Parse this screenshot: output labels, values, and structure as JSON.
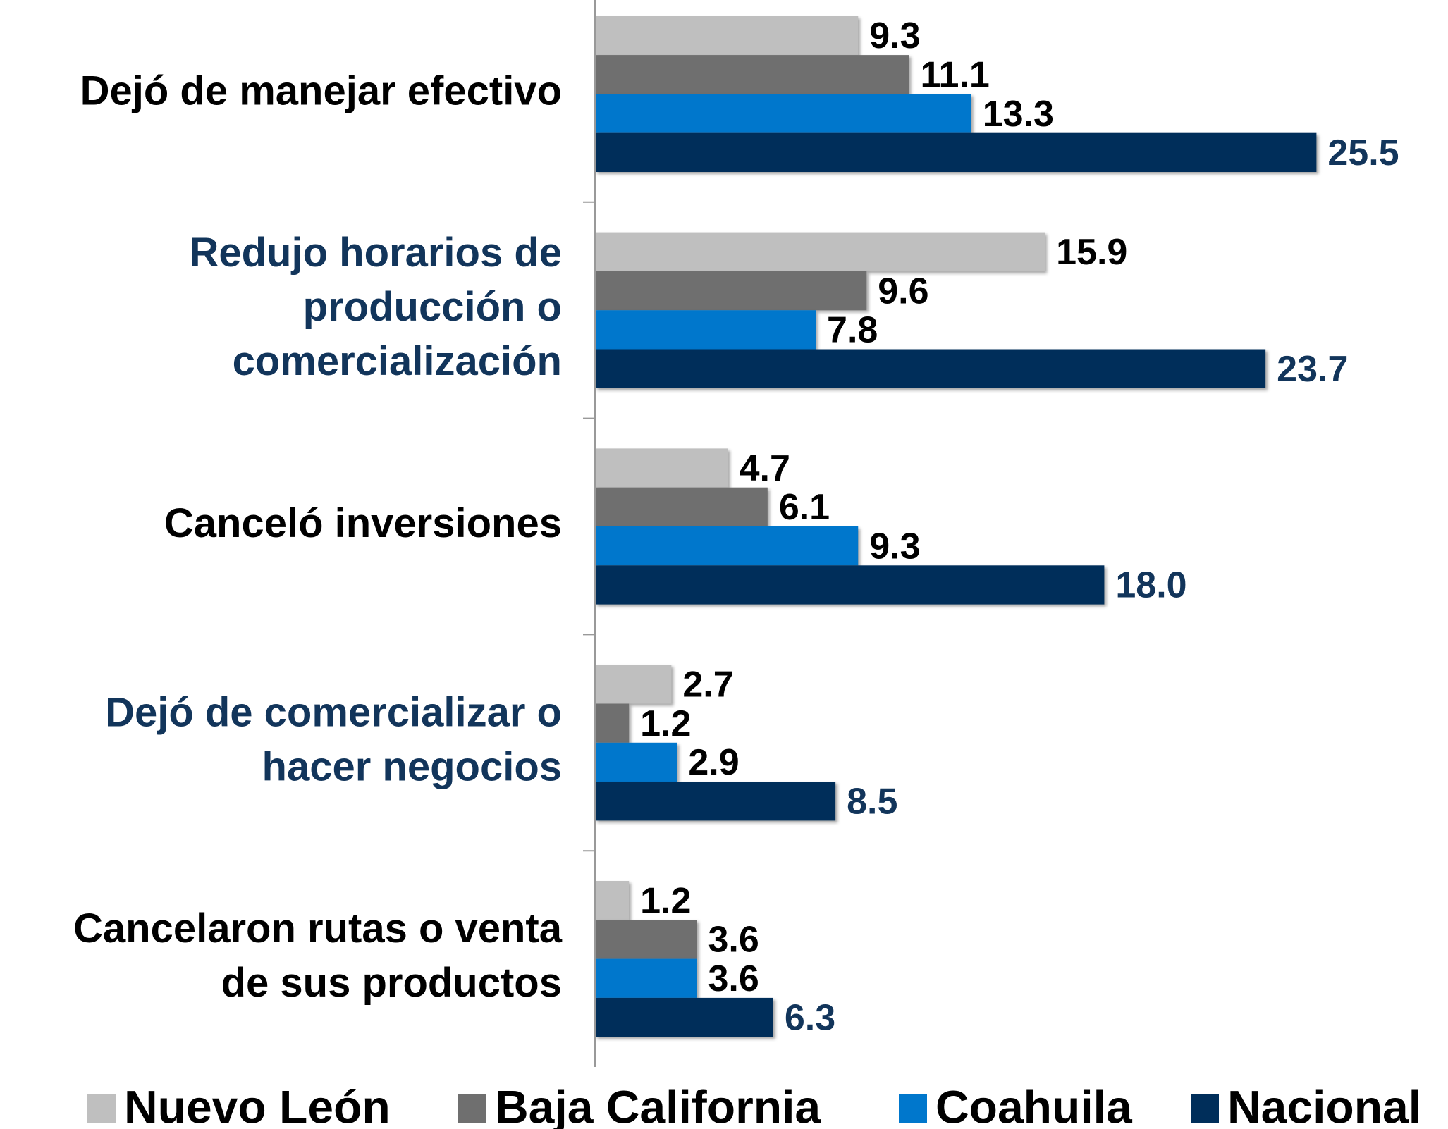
{
  "chart_data": {
    "type": "bar",
    "orientation": "horizontal",
    "categories": [
      "Dejó de manejar efectivo",
      "Redujo horarios de\nproducción o\ncomercialización",
      "Canceló inversiones",
      "Dejó de comercializar o\nhacer negocios",
      "Cancelaron rutas o venta\nde sus productos"
    ],
    "category_colors": [
      "#000000",
      "#12355b",
      "#000000",
      "#12355b",
      "#000000"
    ],
    "series": [
      {
        "name": "Nuevo León",
        "color": "#bfbfbf",
        "label_color": "#000000",
        "values": [
          9.3,
          15.9,
          4.7,
          2.7,
          1.2
        ],
        "value_labels": [
          "9.3",
          "15.9",
          "4.7",
          "2.7",
          "1.2"
        ]
      },
      {
        "name": "Baja California",
        "color": "#6f6f6f",
        "label_color": "#000000",
        "values": [
          11.1,
          9.6,
          6.1,
          1.2,
          3.6
        ],
        "value_labels": [
          "11.1",
          "9.6",
          "6.1",
          "1.2",
          "3.6"
        ]
      },
      {
        "name": "Coahuila",
        "color": "#0077cc",
        "label_color": "#000000",
        "values": [
          13.3,
          7.8,
          9.3,
          2.9,
          3.6
        ],
        "value_labels": [
          "13.3",
          "7.8",
          "9.3",
          "2.9",
          "3.6"
        ]
      },
      {
        "name": "Nacional",
        "color": "#002e5a",
        "label_color": "#12355b",
        "values": [
          25.5,
          23.7,
          18.0,
          8.5,
          6.3
        ],
        "value_labels": [
          "25.5",
          "23.7",
          "18.0",
          "8.5",
          "6.3"
        ]
      }
    ],
    "xlim": [
      0,
      30
    ],
    "legend": "bottom"
  }
}
